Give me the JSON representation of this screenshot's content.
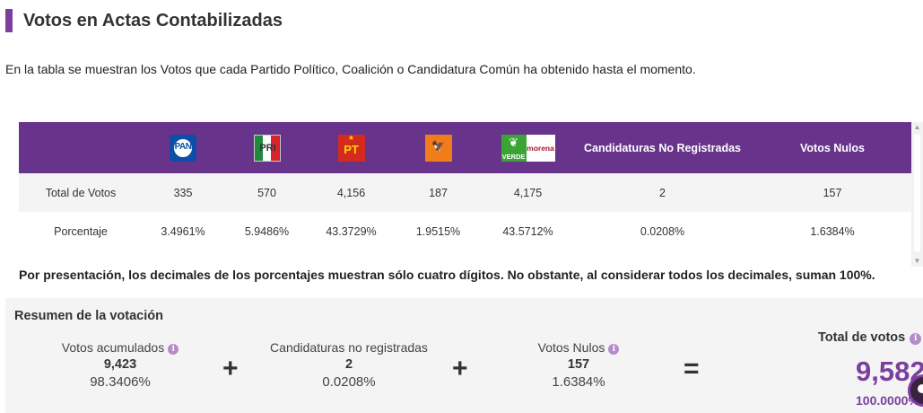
{
  "header": {
    "title": "Votos en Actas Contabilizadas"
  },
  "intro": "En la tabla se muestran los Votos que cada Partido Político, Coalición o Candidatura Común ha obtenido hasta el momento.",
  "table": {
    "columns": {
      "pan": {
        "logo_text": "PAN",
        "icon": "pan-logo"
      },
      "pri": {
        "logo_text": "PRI",
        "icon": "pri-logo"
      },
      "pt": {
        "logo_text": "PT",
        "icon": "pt-logo"
      },
      "mc": {
        "icon": "movimiento-ciudadano-logo"
      },
      "verde_morena": {
        "verde_text": "VERDE",
        "morena_text": "morena",
        "icon": "verde-morena-logo"
      },
      "no_registradas": "Candidaturas No Registradas",
      "nulos": "Votos Nulos"
    },
    "rows": [
      {
        "label": "Total de Votos",
        "pan": "335",
        "pri": "570",
        "pt": "4,156",
        "mc": "187",
        "verde_morena": "4,175",
        "no_registradas": "2",
        "nulos": "157"
      },
      {
        "label": "Porcentaje",
        "pan": "3.4961%",
        "pri": "5.9486%",
        "pt": "43.3729%",
        "mc": "1.9515%",
        "verde_morena": "43.5712%",
        "no_registradas": "0.0208%",
        "nulos": "1.6384%"
      }
    ]
  },
  "note": "Por presentación, los decimales de los porcentajes muestran sólo cuatro dígitos. No obstante, al considerar todos los decimales, suman 100%.",
  "summary": {
    "title": "Resumen de la votación",
    "acumulados": {
      "label": "Votos acumulados",
      "value": "9,423",
      "pct": "98.3406%"
    },
    "no_registradas": {
      "label": "Candidaturas no registradas",
      "value": "2",
      "pct": "0.0208%"
    },
    "nulos": {
      "label": "Votos Nulos",
      "value": "157",
      "pct": "1.6384%"
    },
    "plus": "+",
    "equals": "=",
    "total": {
      "label": "Total de votos",
      "value": "9,582",
      "pct": "100.0000%"
    },
    "info_symbol": "i"
  },
  "colors": {
    "accent": "#7b3fa0",
    "header_bg": "#67338b",
    "row_gray": "#f4f4f4"
  }
}
